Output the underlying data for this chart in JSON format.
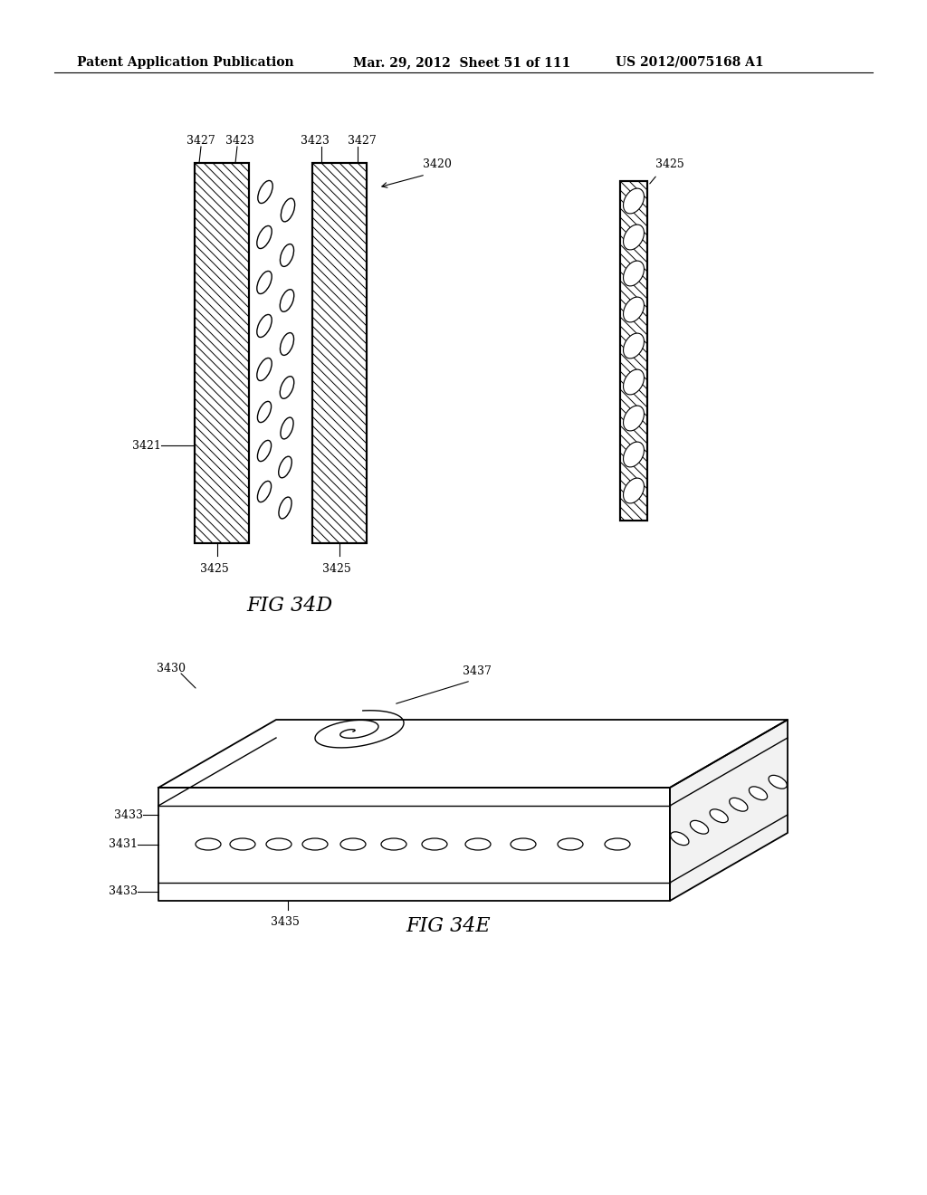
{
  "bg_color": "#ffffff",
  "header_left": "Patent Application Publication",
  "header_mid": "Mar. 29, 2012  Sheet 51 of 111",
  "header_right": "US 2012/0075168 A1",
  "fig34d_label": "FIG 34D",
  "fig34e_label": "FIG 34E",
  "header_fontsize": 10,
  "label_fontsize": 16
}
